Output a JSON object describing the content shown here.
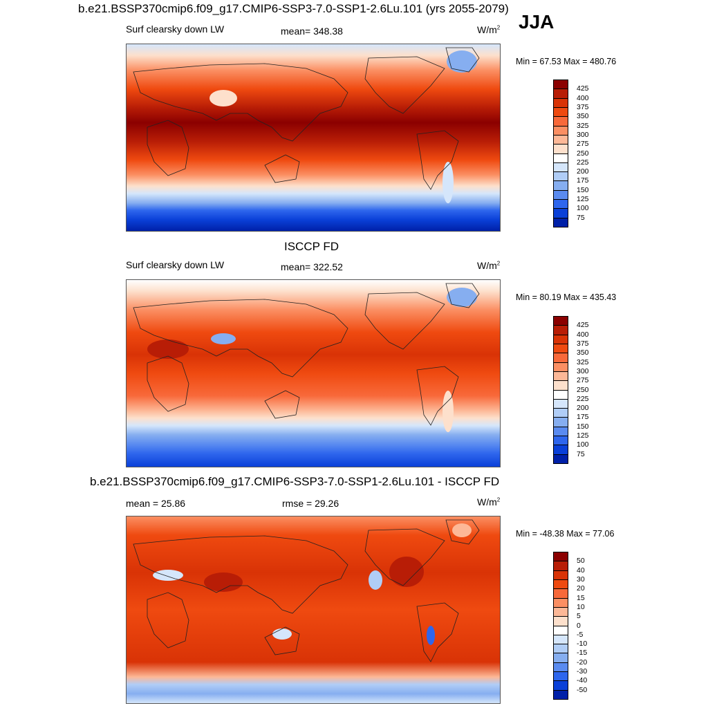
{
  "season": "JJA",
  "panels": [
    {
      "title": "b.e21.BSSP370cmip6.f09_g17.CMIP6-SSP3-7.0-SSP1-2.6Lu.101 (yrs 2055-2079)",
      "left_label": "Surf clearsky down LW",
      "center_label": "mean= 348.38",
      "units": "W/m",
      "units_sup": "2",
      "minmax": "Min =  67.53 Max = 480.76",
      "colorbar": {
        "labels": [
          "425",
          "400",
          "375",
          "350",
          "325",
          "300",
          "275",
          "250",
          "225",
          "200",
          "175",
          "150",
          "125",
          "100",
          "75"
        ]
      }
    },
    {
      "title": "ISCCP FD",
      "left_label": "Surf clearsky down LW",
      "center_label": "mean= 322.52",
      "units": "W/m",
      "units_sup": "2",
      "minmax": "Min =  80.19 Max = 435.43",
      "colorbar": {
        "labels": [
          "425",
          "400",
          "375",
          "350",
          "325",
          "300",
          "275",
          "250",
          "225",
          "200",
          "175",
          "150",
          "125",
          "100",
          "75"
        ]
      }
    },
    {
      "title": "b.e21.BSSP370cmip6.f09_g17.CMIP6-SSP3-7.0-SSP1-2.6Lu.101 - ISCCP FD",
      "left_label": "mean =  25.86",
      "center_label": "rmse =  29.26",
      "units": "W/m",
      "units_sup": "2",
      "minmax": "Min = -48.38 Max =  77.06",
      "colorbar": {
        "labels": [
          "50",
          "40",
          "30",
          "20",
          "15",
          "10",
          "5",
          "0",
          "-5",
          "-10",
          "-15",
          "-20",
          "-30",
          "-40",
          "-50"
        ]
      }
    }
  ],
  "colors": {
    "scale": [
      "#8b0000",
      "#b81d06",
      "#d93306",
      "#ef4a10",
      "#f8693a",
      "#fb8f63",
      "#fdb897",
      "#fde0cc",
      "#ffffff",
      "#d5e6fb",
      "#b0cdf6",
      "#86aef0",
      "#5a8bf0",
      "#2e66ed",
      "#0a40d8",
      "#0020a8",
      "#000080"
    ],
    "coast": "#222222"
  }
}
